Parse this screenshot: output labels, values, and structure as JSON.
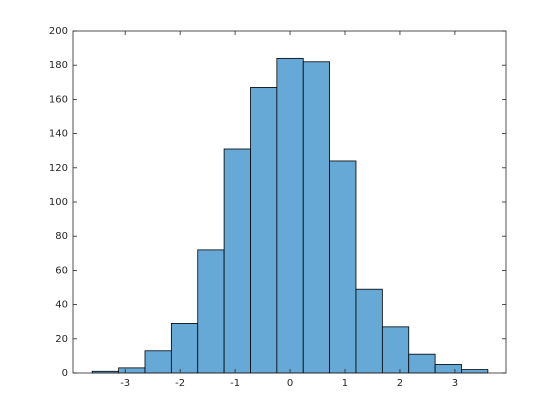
{
  "chart_data": {
    "type": "histogram",
    "bins": [
      -3.6,
      -3.12,
      -2.64,
      -2.16,
      -1.68,
      -1.2,
      -0.72,
      -0.24,
      0.24,
      0.72,
      1.2,
      1.68,
      2.16,
      2.64,
      3.12,
      3.6
    ],
    "values": [
      1,
      3,
      13,
      29,
      72,
      131,
      167,
      184,
      182,
      124,
      49,
      27,
      11,
      5,
      2
    ],
    "color": "#66a8d6",
    "xlim": [
      -3.95,
      3.93
    ],
    "xticks": [
      -3,
      -2,
      -1,
      0,
      1,
      2,
      3
    ],
    "ylim": [
      0,
      200
    ],
    "yticks": [
      0,
      20,
      40,
      60,
      80,
      100,
      120,
      140,
      160,
      180,
      200
    ]
  }
}
